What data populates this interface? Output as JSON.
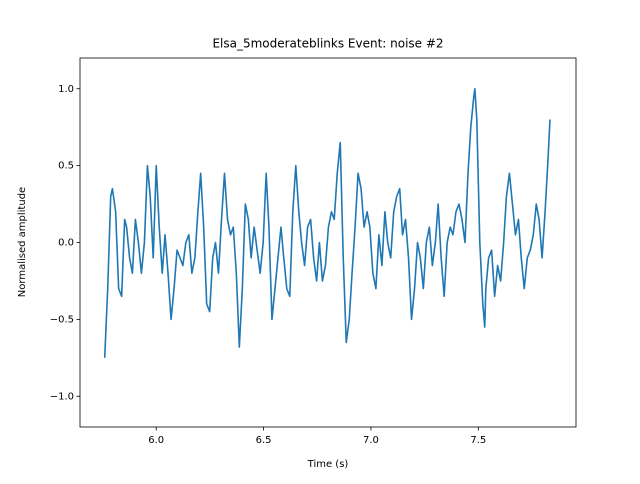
{
  "chart_data": {
    "type": "line",
    "title": "Elsa_5moderateblinks Event: noise #2",
    "xlabel": "Time (s)",
    "ylabel": "Normalised amplitude",
    "xlim": [
      5.645,
      7.955
    ],
    "ylim": [
      -1.2,
      1.2
    ],
    "xticks": [
      {
        "value": 6,
        "label": "6.0"
      },
      {
        "value": 6.5,
        "label": "6.5"
      },
      {
        "value": 7,
        "label": "7.0"
      },
      {
        "value": 7.5,
        "label": "7.5"
      }
    ],
    "yticks": [
      {
        "value": -1,
        "label": "−1.0"
      },
      {
        "value": -0.5,
        "label": "−0.5"
      },
      {
        "value": 0,
        "label": "0.0"
      },
      0.5,
      {
        "value": 1,
        "label": "1.0"
      }
    ],
    "series": [
      {
        "color": "#1f77b4",
        "x": [
          5.76,
          5.774,
          5.788,
          5.796,
          5.811,
          5.825,
          5.839,
          5.853,
          5.862,
          5.876,
          5.889,
          5.903,
          5.917,
          5.931,
          5.945,
          5.959,
          5.972,
          5.986,
          6.0,
          6.014,
          6.028,
          6.041,
          6.055,
          6.069,
          6.083,
          6.097,
          6.111,
          6.124,
          6.138,
          6.152,
          6.166,
          6.18,
          6.194,
          6.207,
          6.221,
          6.235,
          6.249,
          6.263,
          6.276,
          6.29,
          6.304,
          6.318,
          6.332,
          6.346,
          6.359,
          6.373,
          6.387,
          6.401,
          6.415,
          6.429,
          6.442,
          6.456,
          6.47,
          6.484,
          6.498,
          6.512,
          6.525,
          6.539,
          6.553,
          6.567,
          6.581,
          6.594,
          6.608,
          6.622,
          6.636,
          6.65,
          6.664,
          6.677,
          6.691,
          6.705,
          6.719,
          6.733,
          6.747,
          6.76,
          6.774,
          6.788,
          6.802,
          6.816,
          6.829,
          6.843,
          6.857,
          6.871,
          6.885,
          6.899,
          6.912,
          6.926,
          6.94,
          6.954,
          6.968,
          6.982,
          6.995,
          7.009,
          7.023,
          7.037,
          7.051,
          7.065,
          7.078,
          7.092,
          7.106,
          7.12,
          7.134,
          7.147,
          7.161,
          7.175,
          7.189,
          7.203,
          7.217,
          7.23,
          7.244,
          7.258,
          7.272,
          7.286,
          7.3,
          7.313,
          7.327,
          7.341,
          7.355,
          7.369,
          7.382,
          7.396,
          7.41,
          7.424,
          7.438,
          7.452,
          7.465,
          7.479,
          7.484,
          7.493,
          7.507,
          7.521,
          7.53,
          7.535,
          7.548,
          7.562,
          7.576,
          7.59,
          7.604,
          7.618,
          7.631,
          7.645,
          7.659,
          7.673,
          7.687,
          7.7,
          7.714,
          7.728,
          7.742,
          7.756,
          7.77,
          7.783,
          7.797,
          7.811,
          7.825,
          7.834
        ],
        "values": [
          -0.75,
          -0.3,
          0.3,
          0.35,
          0.2,
          -0.3,
          -0.35,
          0.15,
          0.1,
          -0.1,
          -0.2,
          0.15,
          0.0,
          -0.2,
          0.0,
          0.5,
          0.3,
          -0.1,
          0.5,
          0.1,
          -0.2,
          0.05,
          -0.2,
          -0.5,
          -0.3,
          -0.05,
          -0.1,
          -0.15,
          0.0,
          0.05,
          -0.2,
          -0.1,
          0.2,
          0.45,
          0.1,
          -0.4,
          -0.45,
          -0.1,
          0.0,
          -0.2,
          0.15,
          0.45,
          0.15,
          0.05,
          0.1,
          -0.2,
          -0.68,
          -0.3,
          0.25,
          0.15,
          -0.1,
          0.1,
          -0.05,
          -0.2,
          0.0,
          0.45,
          0.1,
          -0.5,
          -0.3,
          -0.1,
          0.1,
          -0.1,
          -0.3,
          -0.35,
          0.2,
          0.5,
          0.2,
          0.0,
          -0.15,
          0.1,
          0.15,
          -0.1,
          -0.25,
          0.0,
          -0.25,
          -0.15,
          0.1,
          0.2,
          0.15,
          0.45,
          0.65,
          -0.1,
          -0.65,
          -0.5,
          -0.2,
          0.1,
          0.45,
          0.35,
          0.1,
          0.2,
          0.1,
          -0.2,
          -0.3,
          0.05,
          -0.15,
          0.2,
          0.0,
          -0.1,
          0.2,
          0.3,
          0.35,
          0.05,
          0.15,
          -0.1,
          -0.5,
          -0.3,
          0.0,
          -0.1,
          -0.3,
          0.0,
          0.1,
          -0.15,
          0.0,
          0.25,
          -0.1,
          -0.35,
          0.0,
          0.1,
          0.05,
          0.2,
          0.25,
          0.15,
          0.0,
          0.45,
          0.75,
          0.95,
          1.0,
          0.8,
          0.0,
          -0.4,
          -0.55,
          -0.3,
          -0.1,
          -0.05,
          -0.35,
          -0.15,
          -0.25,
          0.0,
          0.3,
          0.45,
          0.25,
          0.05,
          0.15,
          -0.1,
          -0.3,
          -0.1,
          -0.05,
          0.05,
          0.25,
          0.15,
          -0.1,
          0.2,
          0.55,
          0.8
        ]
      }
    ]
  }
}
